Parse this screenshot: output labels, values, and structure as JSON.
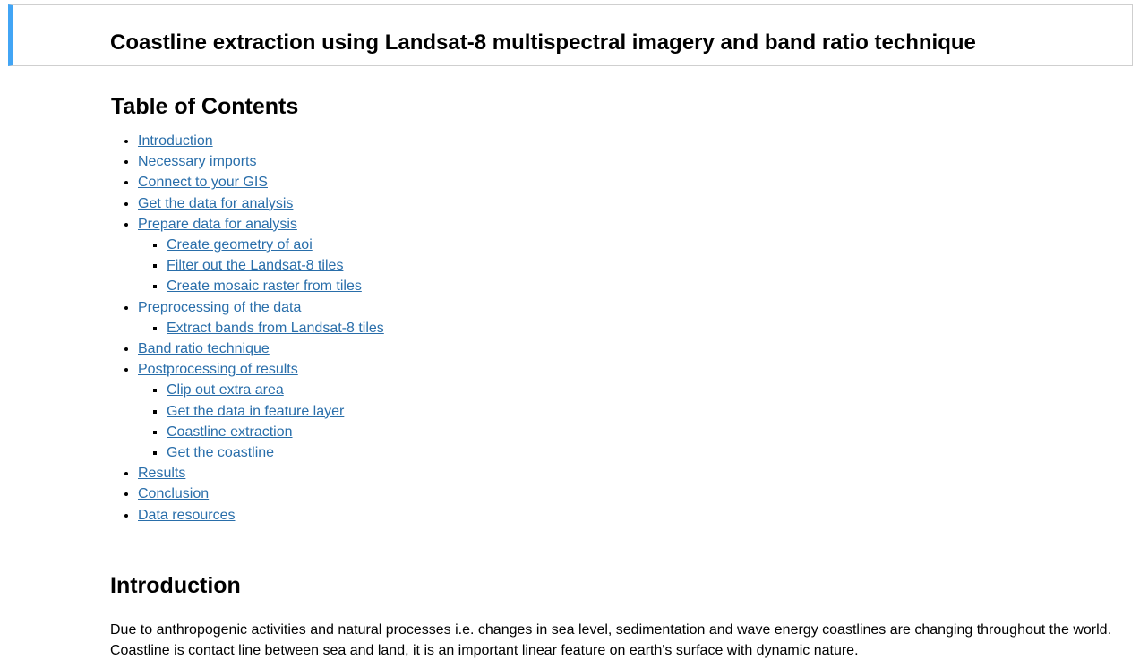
{
  "title": "Coastline extraction using Landsat-8 multispectral imagery and band ratio technique",
  "toc": {
    "heading": "Table of Contents",
    "items": [
      {
        "label": "Introduction"
      },
      {
        "label": "Necessary imports"
      },
      {
        "label": "Connect to your GIS"
      },
      {
        "label": "Get the data for analysis"
      },
      {
        "label": "Prepare data for analysis",
        "children": [
          {
            "label": "Create geometry of aoi"
          },
          {
            "label": "Filter out the Landsat-8 tiles"
          },
          {
            "label": "Create mosaic raster from tiles"
          }
        ]
      },
      {
        "label": "Preprocessing of the data",
        "children": [
          {
            "label": "Extract bands from Landsat-8 tiles"
          }
        ]
      },
      {
        "label": "Band ratio technique"
      },
      {
        "label": "Postprocessing of results",
        "children": [
          {
            "label": "Clip out extra area"
          },
          {
            "label": "Get the data in feature layer"
          },
          {
            "label": "Coastline extraction"
          },
          {
            "label": "Get the coastline"
          }
        ]
      },
      {
        "label": "Results"
      },
      {
        "label": "Conclusion"
      },
      {
        "label": "Data resources"
      }
    ]
  },
  "intro": {
    "heading": "Introduction",
    "paragraph": "Due to anthropogenic activities and natural processes i.e. changes in sea level, sedimentation and wave energy coastlines are changing throughout the world. Coastline is contact line between sea and land, it is an important linear feature on earth's surface with dynamic nature."
  },
  "colors": {
    "accent": "#42a5f5",
    "link": "#296eaa"
  }
}
